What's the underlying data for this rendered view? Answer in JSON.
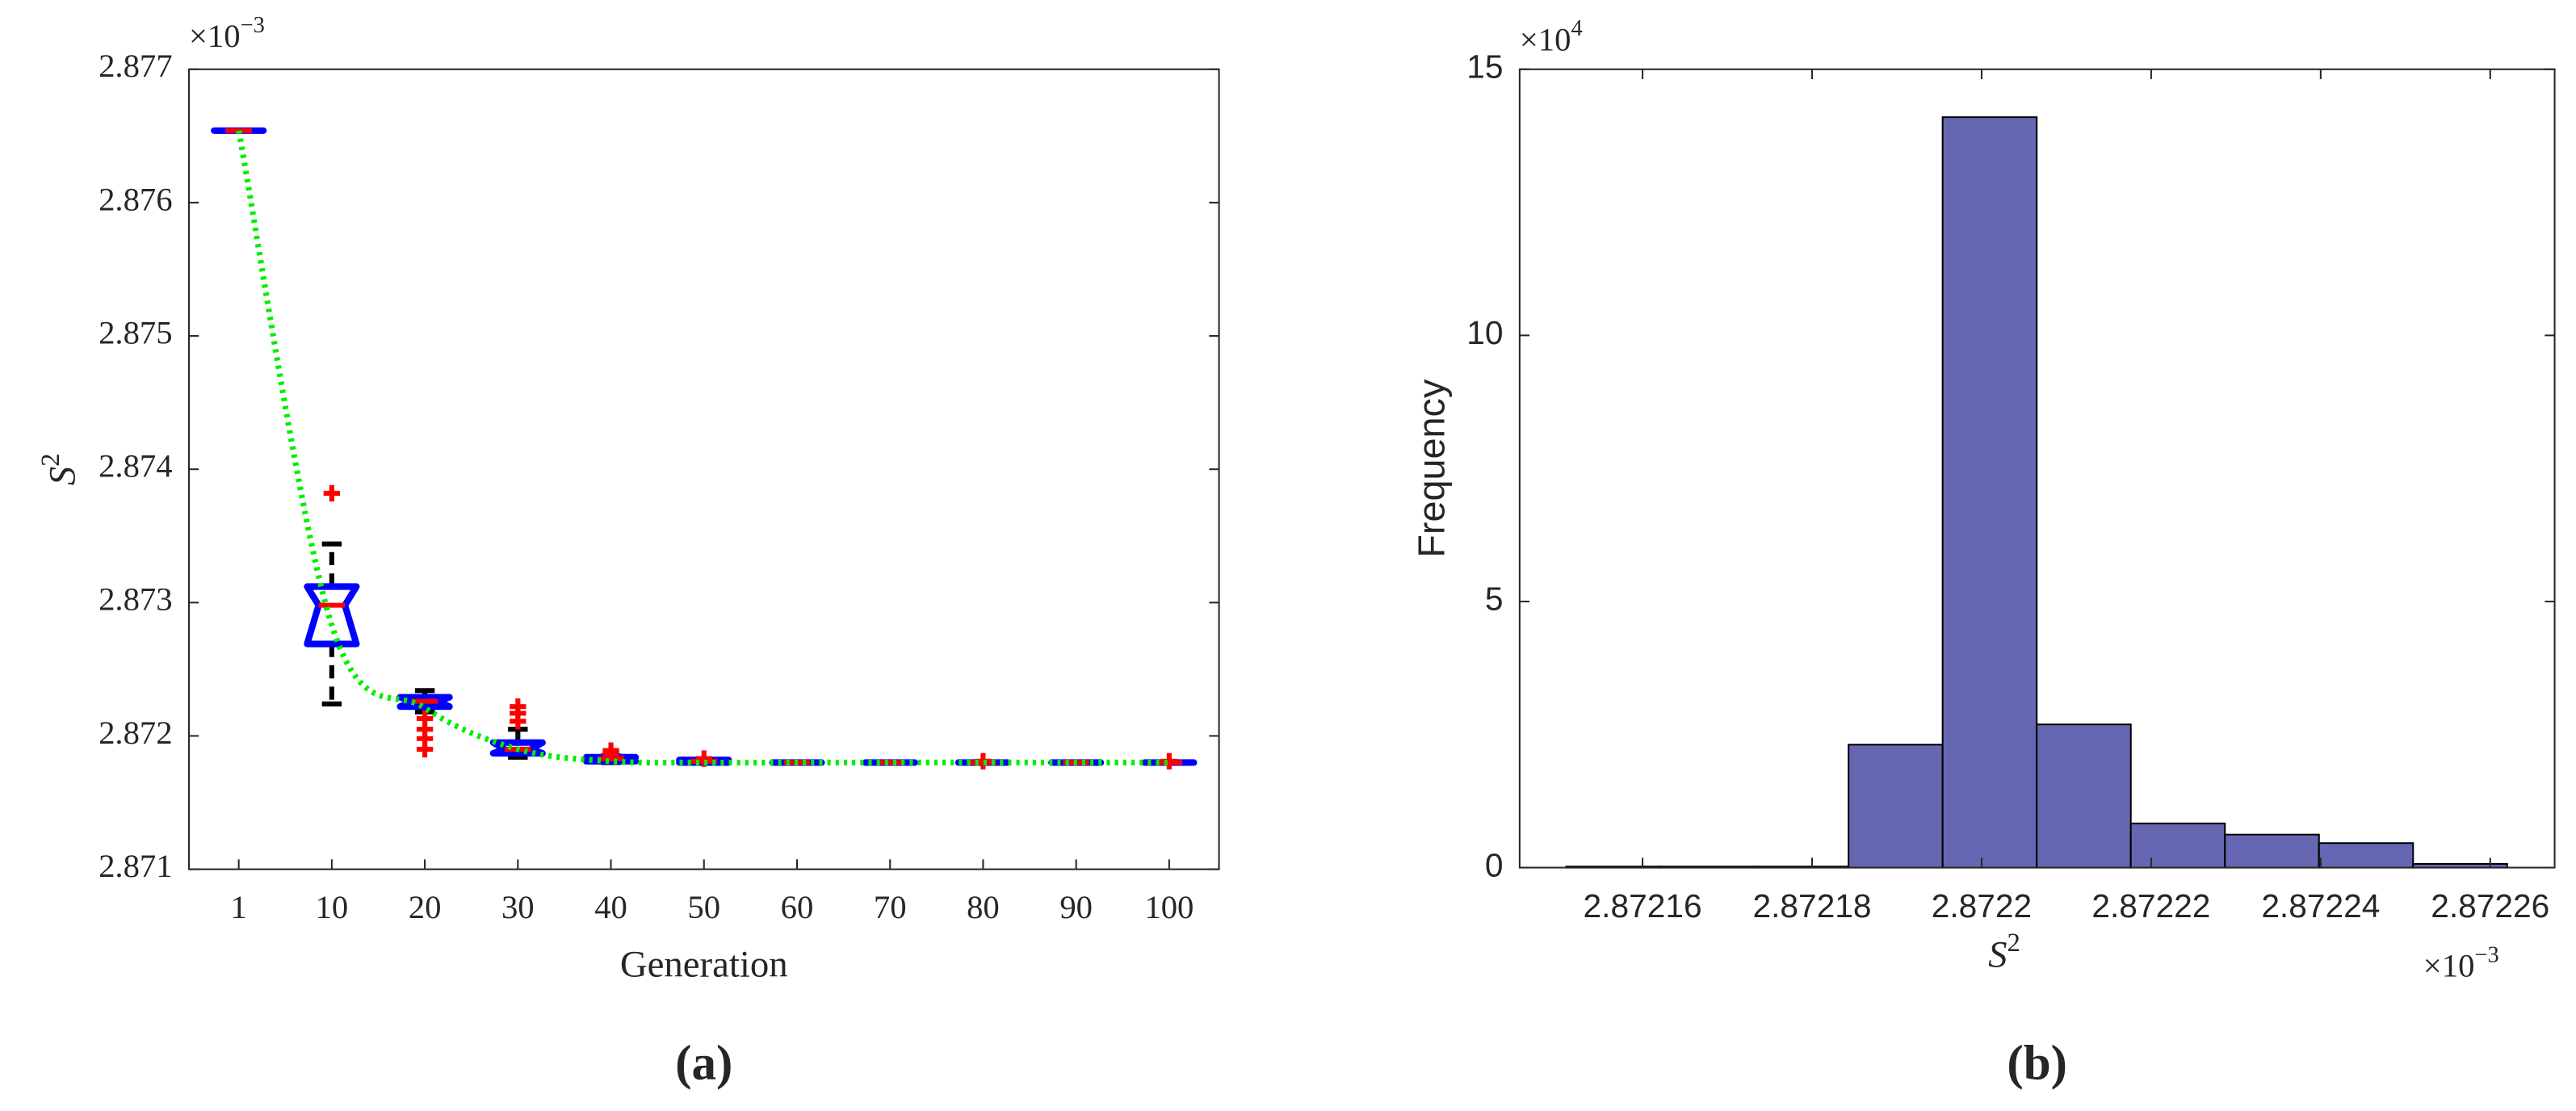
{
  "chart_data": [
    {
      "type": "box",
      "caption": "(a)",
      "xlabel": "Generation",
      "ylabel": {
        "text": "S",
        "superscript": "2"
      },
      "y_multiplier": {
        "base": "×10",
        "exponent": "−3"
      },
      "categories": [
        "1",
        "10",
        "20",
        "30",
        "40",
        "50",
        "60",
        "70",
        "80",
        "90",
        "100"
      ],
      "ylim": [
        2.871,
        2.877
      ],
      "yticks": [
        2.871,
        2.872,
        2.873,
        2.874,
        2.875,
        2.876,
        2.877
      ],
      "box_color": "#0000ff",
      "median_color": "#ff0000",
      "whisker_color": "#000000",
      "outlier_color": "#ff0000",
      "boxes": [
        {
          "q1": 2.87654,
          "median": 2.87654,
          "q3": 2.87654,
          "whisker_low": 2.87654,
          "whisker_high": 2.87654,
          "outliers": []
        },
        {
          "q1": 2.87269,
          "median": 2.87298,
          "q3": 2.87312,
          "whisker_low": 2.87224,
          "whisker_high": 2.87344,
          "outliers": [
            2.87382
          ]
        },
        {
          "q1": 2.87222,
          "median": 2.87226,
          "q3": 2.87229,
          "whisker_low": 2.87218,
          "whisker_high": 2.87234,
          "outliers": [
            2.87213,
            2.87205,
            2.87198,
            2.8719
          ]
        },
        {
          "q1": 2.87187,
          "median": 2.8719,
          "q3": 2.87195,
          "whisker_low": 2.87184,
          "whisker_high": 2.87205,
          "outliers": [
            2.87211,
            2.87217,
            2.87222
          ]
        },
        {
          "q1": 2.87181,
          "median": 2.87183,
          "q3": 2.87184,
          "whisker_low": 2.8718,
          "whisker_high": 2.87185,
          "outliers": [
            2.87187,
            2.87189
          ]
        },
        {
          "q1": 2.8718,
          "median": 2.87181,
          "q3": 2.87182,
          "whisker_low": 2.8718,
          "whisker_high": 2.87182,
          "outliers": [
            2.87183
          ]
        },
        {
          "q1": 2.8718,
          "median": 2.8718,
          "q3": 2.8718,
          "whisker_low": 2.8718,
          "whisker_high": 2.8718,
          "outliers": []
        },
        {
          "q1": 2.8718,
          "median": 2.8718,
          "q3": 2.8718,
          "whisker_low": 2.8718,
          "whisker_high": 2.8718,
          "outliers": []
        },
        {
          "q1": 2.8718,
          "median": 2.8718,
          "q3": 2.8718,
          "whisker_low": 2.8718,
          "whisker_high": 2.8718,
          "outliers": [
            2.87181
          ]
        },
        {
          "q1": 2.8718,
          "median": 2.8718,
          "q3": 2.8718,
          "whisker_low": 2.8718,
          "whisker_high": 2.8718,
          "outliers": []
        },
        {
          "q1": 2.8718,
          "median": 2.8718,
          "q3": 2.8718,
          "whisker_low": 2.8718,
          "whisker_high": 2.8718,
          "outliers": [
            2.87181
          ]
        }
      ],
      "mean_line": {
        "color": "#00ee00",
        "values": [
          2.87654,
          2.87283,
          2.87221,
          2.8719,
          2.87181,
          2.8718,
          2.8718,
          2.8718,
          2.8718,
          2.8718,
          2.8718
        ]
      }
    },
    {
      "type": "histogram",
      "caption": "(b)",
      "ylabel": "Frequency",
      "xlabel": {
        "text": "S",
        "superscript": "2"
      },
      "y_multiplier": {
        "base": "×10",
        "exponent": "4"
      },
      "x_multiplier": {
        "base": "×10",
        "exponent": "−3"
      },
      "color": "#6667b2",
      "bins": [
        2.872151,
        2.8721621,
        2.8721732,
        2.8721843,
        2.8721954,
        2.8722065,
        2.8722176,
        2.8722287,
        2.8722398,
        2.8722509,
        2.872262
      ],
      "values": [
        0.02,
        0.02,
        0.02,
        2.31,
        14.1,
        2.69,
        0.83,
        0.62,
        0.46,
        0.07
      ],
      "xlim": [
        2.8721455,
        2.8722676
      ],
      "xticks": [
        2.87216,
        2.87218,
        2.8722,
        2.87222,
        2.87224,
        2.87226
      ],
      "ylim": [
        0,
        15
      ],
      "yticks": [
        0,
        5,
        10,
        15
      ]
    }
  ]
}
